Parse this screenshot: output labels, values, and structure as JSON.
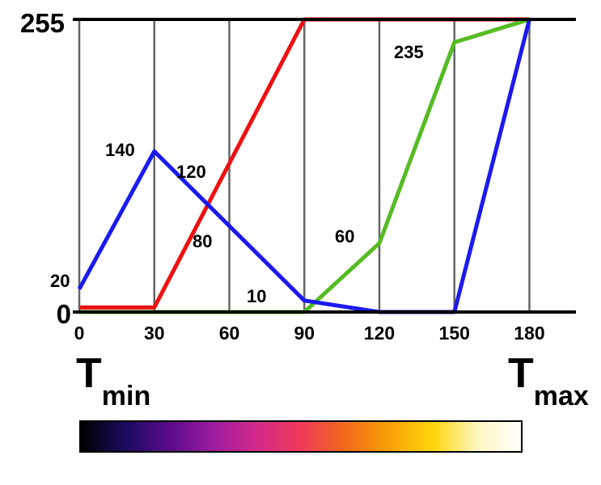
{
  "chart_data": {
    "type": "line",
    "x": [
      0,
      30,
      60,
      90,
      120,
      150,
      180
    ],
    "x_ticks": [
      "0",
      "30",
      "60",
      "90",
      "120",
      "150",
      "180"
    ],
    "y_ticks": [
      "0",
      "255"
    ],
    "ylim": [
      0,
      255
    ],
    "xlim": [
      0,
      200
    ],
    "grid": true,
    "series": [
      {
        "color": "#ee1111",
        "x": [
          0,
          30,
          90,
          180
        ],
        "values": [
          4,
          4,
          255,
          255
        ]
      },
      {
        "color": "#55bb22",
        "x": [
          0,
          90,
          120,
          150,
          180
        ],
        "values": [
          0,
          0,
          60,
          235,
          255
        ]
      },
      {
        "color": "#1a1aee",
        "x": [
          0,
          30,
          90,
          120,
          150,
          180
        ],
        "values": [
          20,
          140,
          10,
          0,
          0,
          255
        ]
      }
    ],
    "annotations": [
      "140",
      "120",
      "80",
      "60",
      "20",
      "10",
      "235"
    ],
    "labels": {
      "tmin_main": "T",
      "tmin_sub": "min",
      "tmax_main": "T",
      "tmax_sub": "max"
    },
    "colorbar": [
      "#000000",
      "#1a0a5e",
      "#5a0c8a",
      "#9b1c9e",
      "#d42a8a",
      "#ee3a5a",
      "#f26a1a",
      "#f8a008",
      "#ffd60a",
      "#fff6c0",
      "#ffffff"
    ]
  }
}
